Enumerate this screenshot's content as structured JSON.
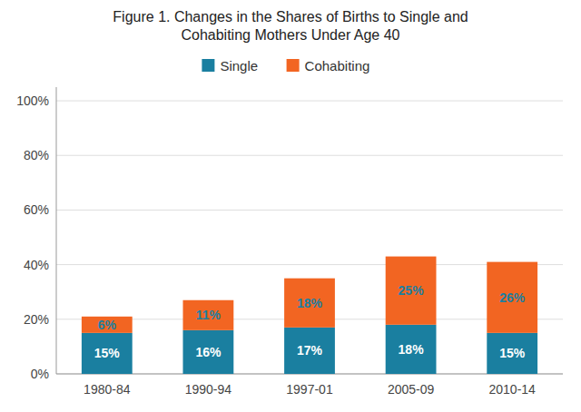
{
  "chart_data": {
    "type": "bar",
    "stacked": true,
    "title": "Figure 1. Changes in the Shares of Births to Single and\nCohabiting Mothers Under Age 40",
    "categories": [
      "1980-84",
      "1990-94",
      "1997-01",
      "2005-09",
      "2010-14"
    ],
    "series": [
      {
        "name": "Single",
        "color": "#1a7fa0",
        "values": [
          15,
          16,
          17,
          18,
          15
        ],
        "value_labels": [
          "15%",
          "16%",
          "17%",
          "18%",
          "15%"
        ]
      },
      {
        "name": "Cohabiting",
        "color": "#f26522",
        "values": [
          6,
          11,
          18,
          25,
          26
        ],
        "value_labels": [
          "6%",
          "11%",
          "18%",
          "25%",
          "26%"
        ]
      }
    ],
    "ylim": [
      0,
      105
    ],
    "yticks": [
      {
        "value": 0,
        "label": "0%"
      },
      {
        "value": 20,
        "label": "20%"
      },
      {
        "value": 40,
        "label": "40%"
      },
      {
        "value": 60,
        "label": "60%"
      },
      {
        "value": 80,
        "label": "80%"
      },
      {
        "value": 100,
        "label": "100%"
      }
    ],
    "grid": true,
    "legend": "top",
    "data_labels": true
  }
}
